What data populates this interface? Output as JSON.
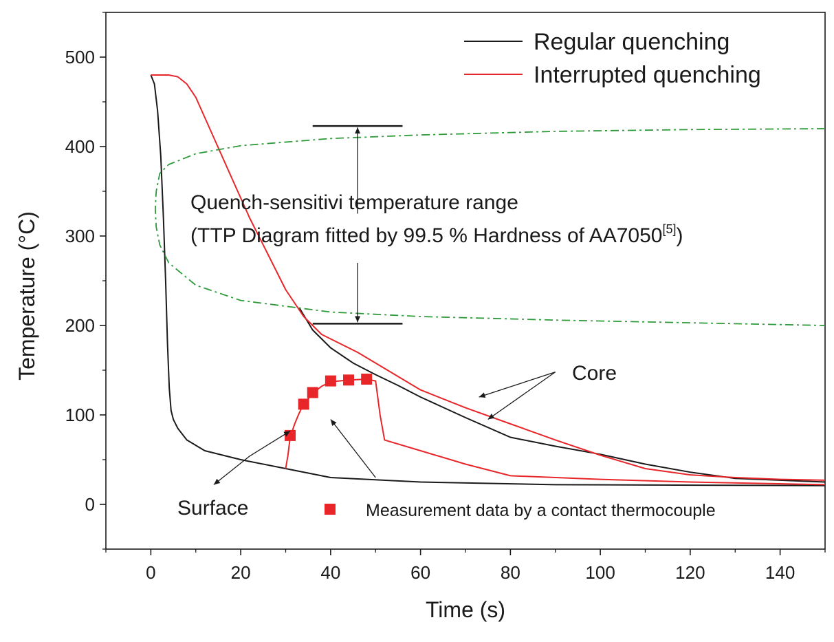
{
  "chart_data": {
    "type": "line",
    "xlabel": "Time (s)",
    "ylabel": "Temperature (°C)",
    "xlim": [
      -10,
      150
    ],
    "ylim": [
      -50,
      550
    ],
    "xticks": [
      0,
      20,
      40,
      60,
      80,
      100,
      120,
      140
    ],
    "yticks": [
      0,
      100,
      200,
      300,
      400,
      500
    ],
    "legend": [
      {
        "name": "Regular quenching",
        "color": "#1a1a1a"
      },
      {
        "name": "Interrupted quenching",
        "color": "#e8262a"
      }
    ],
    "series": [
      {
        "name": "Regular quenching (surface)",
        "color": "#1a1a1a",
        "x": [
          0,
          0.8,
          1.5,
          2.2,
          2.8,
          3.3,
          3.7,
          4.1,
          4.5,
          5.0,
          6.0,
          8.0,
          12.0,
          20.0,
          30.0,
          40.0,
          60.0,
          90.0,
          150.0
        ],
        "y": [
          480,
          470,
          440,
          390,
          320,
          250,
          180,
          130,
          105,
          95,
          85,
          72,
          60,
          50,
          40,
          30,
          25,
          22,
          21
        ]
      },
      {
        "name": "Regular quenching (core)",
        "color": "#1a1a1a",
        "x": [
          33,
          36,
          40,
          45,
          50,
          55,
          60,
          70,
          80,
          90,
          100,
          110,
          120,
          130,
          140,
          150
        ],
        "y": [
          220,
          195,
          175,
          158,
          145,
          133,
          120,
          97,
          75,
          65,
          56,
          45,
          36,
          29,
          27,
          25
        ]
      },
      {
        "name": "Interrupted quenching (core)",
        "color": "#e8262a",
        "x": [
          0,
          4,
          6,
          8,
          10,
          14,
          18,
          22,
          26,
          30,
          34,
          38,
          42,
          46,
          50,
          55,
          60,
          70,
          80,
          90,
          100,
          110,
          120,
          130,
          140,
          150
        ],
        "y": [
          480,
          480,
          478,
          470,
          455,
          410,
          365,
          320,
          280,
          240,
          210,
          190,
          180,
          170,
          158,
          143,
          128,
          108,
          90,
          72,
          55,
          40,
          33,
          30,
          28,
          27
        ]
      },
      {
        "name": "Interrupted quenching (surface)",
        "color": "#e8262a",
        "x": [
          30,
          30.5,
          31,
          32,
          33,
          34,
          36,
          38,
          40,
          44,
          48,
          50,
          51,
          52,
          60,
          70,
          80,
          100,
          120,
          150
        ],
        "y": [
          40,
          55,
          75,
          90,
          102,
          112,
          124,
          132,
          137,
          139,
          140,
          138,
          100,
          72,
          60,
          45,
          32,
          28,
          25,
          22
        ]
      },
      {
        "name": "TTP diagram (99.5 % hardness)",
        "color": "#2e9a3a",
        "style": "dash-dot",
        "x": [
          150,
          120,
          90,
          60,
          40,
          20,
          10,
          4,
          2,
          1.2,
          1.0,
          1.2,
          2,
          4,
          10,
          20,
          40,
          60,
          90,
          120,
          150
        ],
        "y": [
          420,
          419,
          417,
          413,
          409,
          401,
          392,
          380,
          370,
          350,
          330,
          310,
          290,
          270,
          245,
          228,
          215,
          210,
          206,
          203,
          200
        ]
      }
    ],
    "measurement": {
      "name": "Measurement data by a contact thermocouple",
      "color": "#e8262a",
      "x": [
        31,
        34,
        36,
        40,
        44,
        48
      ],
      "y": [
        77,
        112,
        125,
        138,
        139,
        140
      ]
    },
    "annotations": {
      "range_line1": "Quench-sensitivi temperature range",
      "range_line2": "(TTP Diagram fitted by 99.5 % Hardness of AA7050",
      "range_sup": "[5]",
      "range_close": ")",
      "range_top": 423,
      "range_bottom": 202,
      "range_x": [
        36,
        56
      ],
      "core": "Core",
      "surface": "Surface"
    }
  }
}
